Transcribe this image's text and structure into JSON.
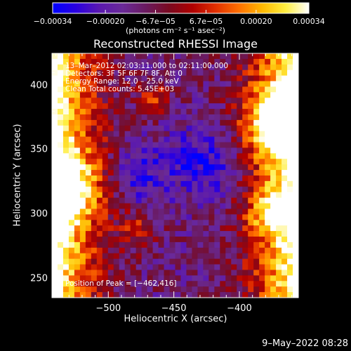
{
  "chart_data": {
    "type": "heatmap",
    "title": "Reconstructed RHESSI Image",
    "xlabel": "Heliocentric X (arcsec)",
    "ylabel": "Heliocentric Y (arcsec)",
    "xlim": [
      -543,
      -355
    ],
    "ylim": [
      235,
      425
    ],
    "xticks": [
      {
        "value": -500,
        "label": "−500"
      },
      {
        "value": -450,
        "label": "−450"
      },
      {
        "value": -400,
        "label": "−400"
      }
    ],
    "yticks": [
      {
        "value": 400,
        "label": "400"
      },
      {
        "value": 350,
        "label": "350"
      },
      {
        "value": 300,
        "label": "300"
      },
      {
        "value": 250,
        "label": "250"
      }
    ],
    "colorbar": {
      "range": [
        -0.00034,
        0.00034
      ],
      "unit_label": "(photons cm⁻² s⁻¹ asec⁻²)",
      "ticks": [
        {
          "value": -0.00034,
          "label": "−0.00034"
        },
        {
          "value": -0.0002,
          "label": "−0.00020"
        },
        {
          "value": -6.7e-05,
          "label": "−6.7e−05"
        },
        {
          "value": 6.7e-05,
          "label": "6.7e−05"
        },
        {
          "value": 0.0002,
          "label": "0.00020"
        },
        {
          "value": 0.00034,
          "label": "0.00034"
        }
      ],
      "colormap": [
        "#0000ff",
        "#2a00e0",
        "#5a18b0",
        "#6a2a98",
        "#6a1a60",
        "#7a0a20",
        "#b00000",
        "#e23000",
        "#ff7000",
        "#ffb800",
        "#ffee40",
        "#ffffff"
      ]
    },
    "annotations": {
      "info_lines": [
        "13–Mar–2012 02:03:11.000 to 02:11:00.000",
        "Detectors: 3F 5F 6F 7F 8F, Att 0",
        "Energy Range: 12.0 – 25.0 keV",
        "Clean     Total counts: 5.45E+03"
      ],
      "peak_position": "Position of Peak = [−462,416]"
    },
    "grid": false
  },
  "footer": {
    "datestamp": "9–May–2022 08:28"
  }
}
